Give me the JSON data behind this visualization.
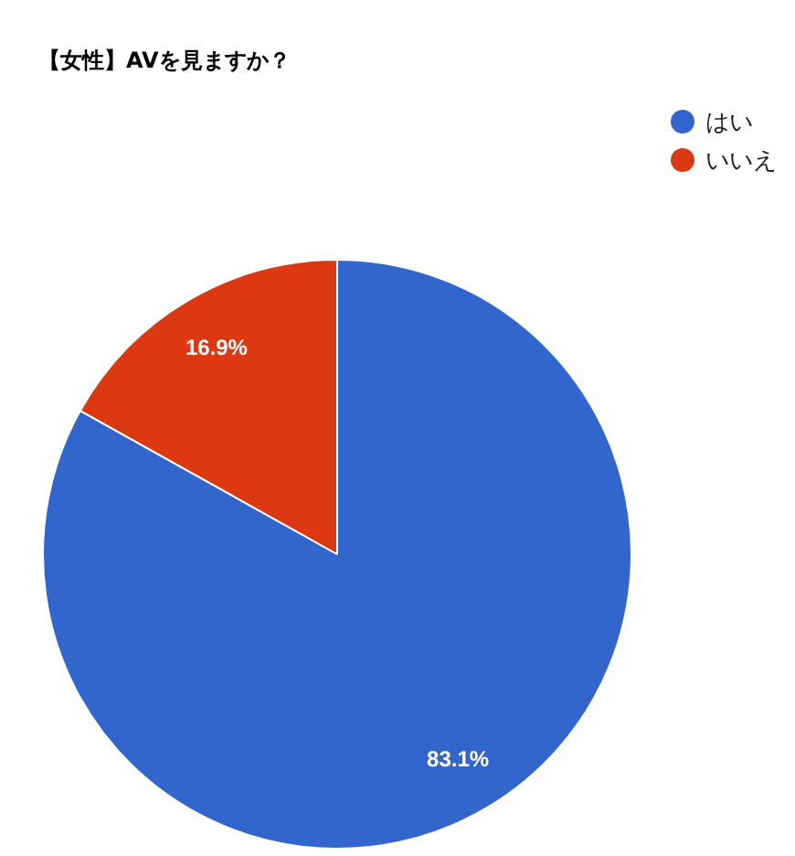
{
  "chart_data": {
    "type": "pie",
    "title": "【女性】AVを見ますか？",
    "categories": [
      "はい",
      "いいえ"
    ],
    "values": [
      83.1,
      16.9
    ],
    "colors": [
      "#3366cc",
      "#dc3912"
    ],
    "value_labels": [
      "83.1%",
      "16.9%"
    ],
    "legend": "top right"
  }
}
